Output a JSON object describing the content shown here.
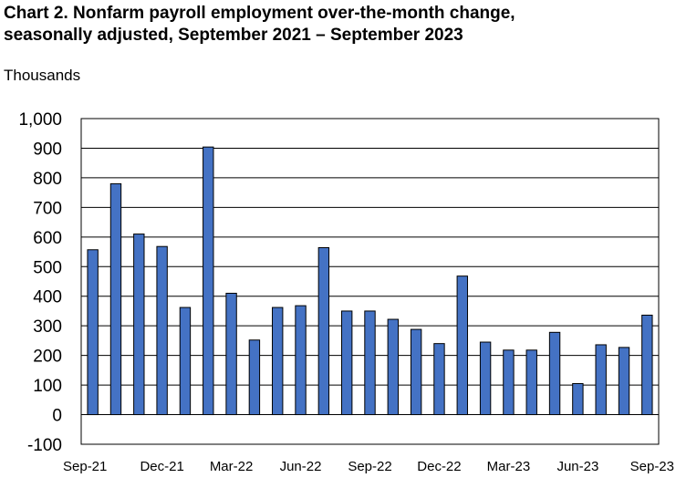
{
  "chart_data": {
    "type": "bar",
    "title_lines": [
      "Chart 2. Nonfarm payroll employment over-the-month change,",
      "seasonally adjusted, September 2021 – September 2023"
    ],
    "ylabel": "Thousands",
    "xlabel": "",
    "ylim": [
      -100,
      1000
    ],
    "yticks": [
      -100,
      0,
      100,
      200,
      300,
      400,
      500,
      600,
      700,
      800,
      900,
      1000
    ],
    "ytick_labels": [
      "-100",
      "0",
      "100",
      "200",
      "300",
      "400",
      "500",
      "600",
      "700",
      "800",
      "900",
      "1,000"
    ],
    "categories": [
      "Sep-21",
      "Oct-21",
      "Nov-21",
      "Dec-21",
      "Jan-22",
      "Feb-22",
      "Mar-22",
      "Apr-22",
      "May-22",
      "Jun-22",
      "Jul-22",
      "Aug-22",
      "Sep-22",
      "Oct-22",
      "Nov-22",
      "Dec-22",
      "Jan-23",
      "Feb-23",
      "Mar-23",
      "Apr-23",
      "May-23",
      "Jun-23",
      "Jul-23",
      "Aug-23",
      "Sep-23"
    ],
    "xtick_labels": [
      "Sep-21",
      "Dec-21",
      "Mar-22",
      "Jun-22",
      "Sep-22",
      "Dec-22",
      "Mar-23",
      "Jun-23",
      "Sep-23"
    ],
    "values": [
      557,
      780,
      610,
      568,
      362,
      904,
      410,
      252,
      362,
      368,
      564,
      350,
      350,
      322,
      288,
      240,
      468,
      245,
      218,
      218,
      278,
      105,
      236,
      227,
      336
    ],
    "grid": true,
    "legend": "none",
    "bar_color": "#4472C4",
    "bar_edge_color": "#000000"
  }
}
